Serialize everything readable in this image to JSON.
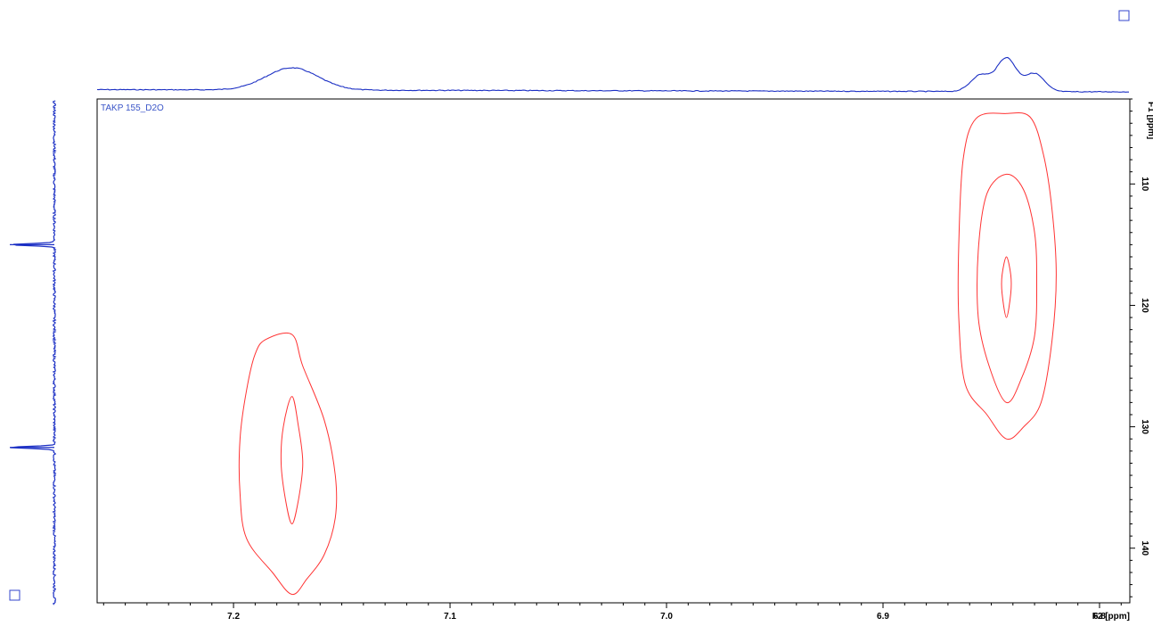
{
  "chart_data": {
    "type": "contour",
    "dataset_label": "TAKP 155_D2O",
    "xlabel": "F2 [ppm]",
    "ylabel": "F1 [ppm]",
    "x_axis_reversed": true,
    "y_axis_reversed": true,
    "xlim": [
      7.263,
      6.786
    ],
    "ylim": [
      103.0,
      144.5
    ],
    "x_ticks": [
      "7.2",
      "7.1",
      "7.0",
      "6.9",
      "6.8"
    ],
    "x_tick_values": [
      7.2,
      7.1,
      7.0,
      6.9,
      6.8
    ],
    "y_ticks": [
      "110",
      "120",
      "130",
      "140"
    ],
    "y_tick_values": [
      110,
      120,
      130,
      140
    ],
    "cross_peaks": [
      {
        "center_f2": 7.173,
        "center_f1": 132.8,
        "contours": [
          [
            [
              7.185,
              122.8
            ],
            [
              7.173,
              122.4
            ],
            [
              7.168,
              125.0
            ],
            [
              7.158,
              129.5
            ],
            [
              7.153,
              134.0
            ],
            [
              7.153,
              137.5
            ],
            [
              7.158,
              140.5
            ],
            [
              7.166,
              142.5
            ],
            [
              7.173,
              143.8
            ],
            [
              7.182,
              142.0
            ],
            [
              7.194,
              139.2
            ],
            [
              7.197,
              135.5
            ],
            [
              7.197,
              131.0
            ],
            [
              7.194,
              127.0
            ],
            [
              7.19,
              124.0
            ]
          ],
          [
            [
              7.173,
              127.5
            ],
            [
              7.17,
              130.0
            ],
            [
              7.168,
              133.0
            ],
            [
              7.17,
              136.0
            ],
            [
              7.173,
              138.0
            ],
            [
              7.176,
              136.0
            ],
            [
              7.178,
              133.0
            ],
            [
              7.177,
              130.0
            ]
          ]
        ]
      },
      {
        "center_f2": 6.843,
        "center_f1": 118.0,
        "contours": [
          [
            [
              6.843,
              104.2
            ],
            [
              6.832,
              104.5
            ],
            [
              6.826,
              107.5
            ],
            [
              6.822,
              112.0
            ],
            [
              6.82,
              117.5
            ],
            [
              6.822,
              123.0
            ],
            [
              6.827,
              128.0
            ],
            [
              6.835,
              130.0
            ],
            [
              6.843,
              131.0
            ],
            [
              6.852,
              129.0
            ],
            [
              6.862,
              126.5
            ],
            [
              6.865,
              121.0
            ],
            [
              6.865,
              115.0
            ],
            [
              6.863,
              108.0
            ],
            [
              6.857,
              104.6
            ]
          ],
          [
            [
              6.843,
              109.2
            ],
            [
              6.835,
              110.5
            ],
            [
              6.83,
              114.0
            ],
            [
              6.829,
              118.0
            ],
            [
              6.83,
              122.5
            ],
            [
              6.836,
              126.0
            ],
            [
              6.843,
              128.0
            ],
            [
              6.851,
              125.0
            ],
            [
              6.856,
              121.0
            ],
            [
              6.856,
              115.5
            ],
            [
              6.852,
              110.8
            ]
          ],
          [
            [
              6.843,
              116.0
            ],
            [
              6.841,
              117.5
            ],
            [
              6.841,
              119.0
            ],
            [
              6.843,
              121.0
            ],
            [
              6.845,
              119.0
            ],
            [
              6.845,
              117.5
            ]
          ]
        ]
      }
    ],
    "f2_projection_peaks": [
      {
        "shift": 7.173,
        "height": 0.52,
        "width": 0.012
      },
      {
        "shift": 6.855,
        "height": 0.38,
        "width": 0.0045
      },
      {
        "shift": 6.843,
        "height": 0.78,
        "width": 0.0045
      },
      {
        "shift": 6.83,
        "height": 0.42,
        "width": 0.0045
      }
    ],
    "f1_projection_peaks": [
      {
        "shift": 115.0,
        "height": 1.0
      },
      {
        "shift": 131.7,
        "height": 1.0
      }
    ],
    "colors": {
      "contour": "#ff3333",
      "projection": "#1b2fc4",
      "dataset_label": "#3a55c8",
      "frame": "#000000"
    }
  }
}
